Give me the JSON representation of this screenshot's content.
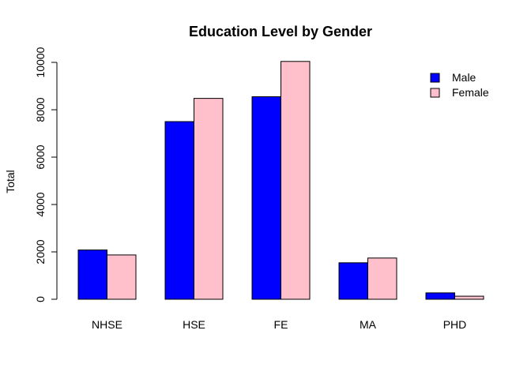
{
  "chart_data": {
    "type": "bar",
    "title": "Education Level by Gender",
    "xlabel": "",
    "ylabel": "Total",
    "categories": [
      "NHSE",
      "HSE",
      "FE",
      "MA",
      "PHD"
    ],
    "series": [
      {
        "name": "Male",
        "color": "#0000ff",
        "values": [
          2080,
          7500,
          8550,
          1540,
          270
        ]
      },
      {
        "name": "Female",
        "color": "#ffc0cb",
        "values": [
          1870,
          8480,
          10040,
          1740,
          130
        ]
      }
    ],
    "ylim": [
      0,
      10000
    ],
    "yticks": [
      0,
      2000,
      4000,
      6000,
      8000,
      10000
    ],
    "grid": false,
    "legend_position": "top-right"
  }
}
